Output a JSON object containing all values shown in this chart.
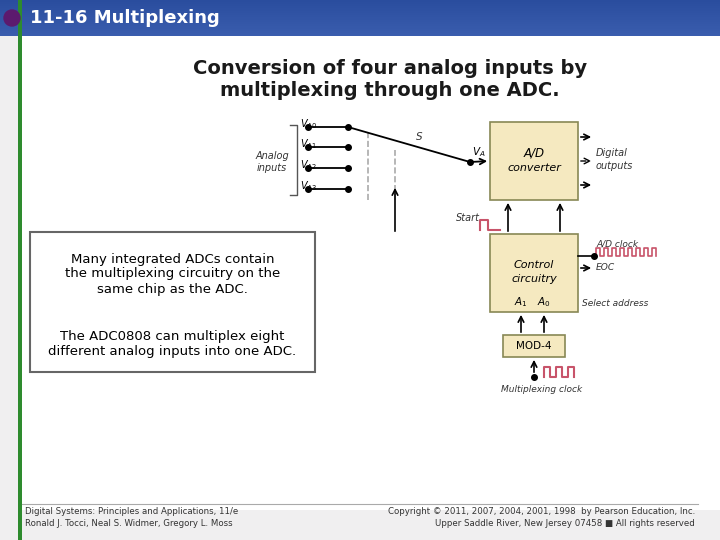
{
  "title_text": "11-16 Multiplexing",
  "title_bg_color": "#3a5dae",
  "title_text_color": "#ffffff",
  "title_bullet_color": "#5c1a6e",
  "title_line_color": "#2e8b2e",
  "body_bg_color": "#f0eff0",
  "heading": "Conversion of four analog inputs by\nmultiplexing through one ADC.",
  "heading_color": "#1a1a1a",
  "text_box_text1": "Many integrated ADCs contain\nthe multiplexing circuitry on the\nsame chip as the ADC.",
  "text_box_text2": "The ADC0808 can multiplex eight\ndifferent analog inputs into one ADC.",
  "text_box_color": "#000000",
  "footer_left1": "Digital Systems: Principles and Applications, 11/e",
  "footer_left2": "Ronald J. Tocci, Neal S. Widmer, Gregory L. Moss",
  "footer_right1": "Copyright © 2011, 2007, 2004, 2001, 1998  by Pearson Education, Inc.",
  "footer_right2": "Upper Saddle River, New Jersey 07458 ■ All rights reserved",
  "footer_color": "#333333",
  "adc_box_color": "#f5e9c0",
  "adc_box_edge": "#888855",
  "clock_color": "#c8546a",
  "wire_color": "#000000",
  "dashed_color": "#aaaaaa"
}
